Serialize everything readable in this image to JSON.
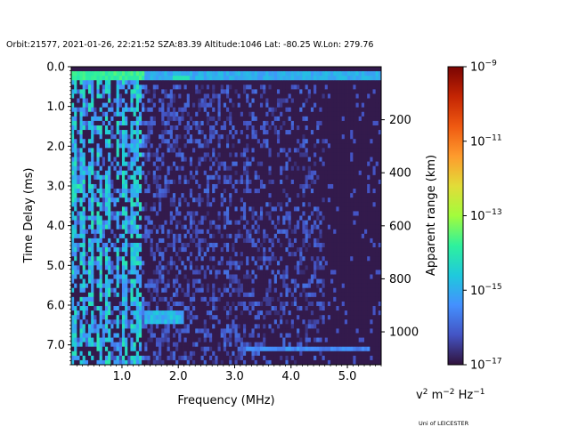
{
  "chart_data": {
    "type": "heatmap",
    "title": "Orbit:21577, 2021-01-26, 22:21:52 SZA:83.39 Altitude:1046 Lat: -80.25 W.Lon: 279.76",
    "xlabel": "Frequency (MHz)",
    "ylabel": "Time Delay (ms)",
    "y2label": "Apparent range (km)",
    "xlim": [
      0.1,
      5.6
    ],
    "ylim": [
      7.5,
      0.0
    ],
    "y2lim": [
      0,
      1124
    ],
    "x_ticks": [
      1.0,
      2.0,
      3.0,
      4.0,
      5.0
    ],
    "x_tick_labels": [
      "1.0",
      "2.0",
      "3.0",
      "4.0",
      "5.0"
    ],
    "y_ticks": [
      0.0,
      1.0,
      2.0,
      3.0,
      4.0,
      5.0,
      6.0,
      7.0
    ],
    "y_tick_labels": [
      "0.0",
      "1.0",
      "2.0",
      "3.0",
      "4.0",
      "5.0",
      "6.0",
      "7.0"
    ],
    "y2_ticks": [
      200,
      400,
      600,
      800,
      1000
    ],
    "y2_tick_labels": [
      "200",
      "400",
      "600",
      "800",
      "1000"
    ],
    "colorbar": {
      "scale": "log",
      "range": [
        1e-17,
        1e-09
      ],
      "ticks": [
        1e-17,
        1e-15,
        1e-13,
        1e-11,
        1e-09
      ],
      "tick_labels": [
        {
          "base": "10",
          "exp": "−17"
        },
        {
          "base": "10",
          "exp": "−15"
        },
        {
          "base": "10",
          "exp": "−13"
        },
        {
          "base": "10",
          "exp": "−11"
        },
        {
          "base": "10",
          "exp": "−9"
        }
      ],
      "unit_label": {
        "v": "v",
        "exp2": "2",
        "m": " m",
        "expm": "−2",
        "hz": " Hz",
        "exphz": "−1"
      },
      "colormap": [
        "#30123b",
        "#4454c4",
        "#4490fe",
        "#1fc9dd",
        "#2ef19d",
        "#a2fc3c",
        "#e2dc38",
        "#fe9b2d",
        "#ef5911",
        "#c42503",
        "#7a0403"
      ]
    },
    "background_log10": -16.9,
    "features": [
      {
        "desc": "strong topside echo band near 0.2-0.3 ms",
        "freq": [
          0.1,
          5.6
        ],
        "delay": [
          0.15,
          0.3
        ],
        "log10": -13.5
      },
      {
        "desc": "vertical interference lines below 1.4 MHz",
        "freq_list": [
          0.15,
          0.3,
          0.45,
          0.6,
          0.75,
          0.92,
          1.05,
          1.2,
          1.28,
          1.33
        ],
        "log10": -14.0
      },
      {
        "desc": "diffuse noise region",
        "freq": [
          1.4,
          4.6
        ],
        "delay": [
          0.5,
          7.5
        ],
        "log10": -15.8
      },
      {
        "desc": "echo trace near 6.2 ms",
        "freq": [
          1.4,
          2.1
        ],
        "delay": [
          6.1,
          6.5
        ],
        "log10": -14.5
      },
      {
        "desc": "echo trace near 7.1 ms",
        "freq": [
          3.2,
          5.4
        ],
        "delay": [
          7.05,
          7.2
        ],
        "log10": -15.2
      },
      {
        "desc": "band near 3.0 ms at low freq",
        "freq": [
          0.1,
          0.3
        ],
        "delay": [
          2.95,
          3.05
        ],
        "log10": -13.8
      }
    ]
  },
  "credit": "Uni of LEICESTER"
}
